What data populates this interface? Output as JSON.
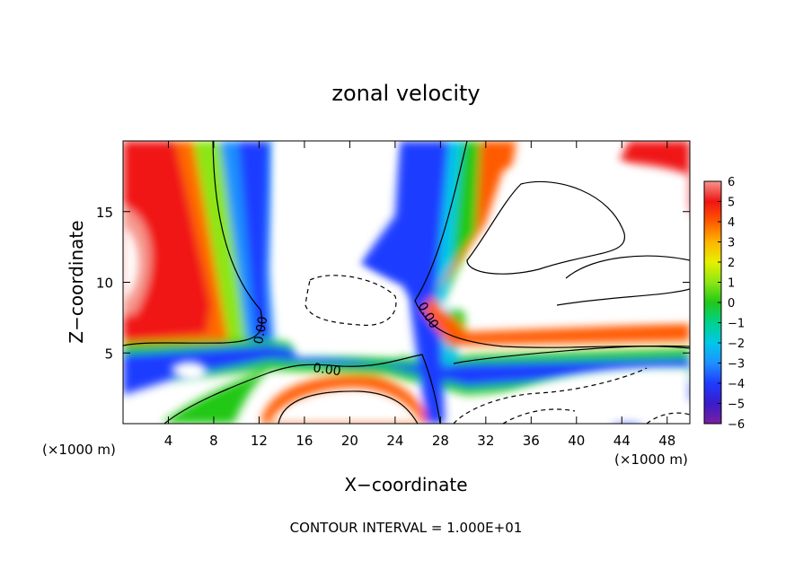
{
  "chart_data": {
    "type": "heatmap",
    "title": "zonal velocity",
    "xlabel": "X−coordinate",
    "ylabel": "Z−coordinate",
    "x_units": "(×1000 m)",
    "xlim": [
      0,
      50
    ],
    "ylim": [
      0,
      20
    ],
    "x_ticks": [
      4,
      8,
      12,
      16,
      20,
      24,
      28,
      32,
      36,
      40,
      44,
      48
    ],
    "y_ticks": [
      5,
      10,
      15
    ],
    "colorbar": {
      "range": [
        -6,
        6
      ],
      "ticks": [
        6,
        5,
        4,
        3,
        2,
        1,
        0,
        -1,
        -2,
        -3,
        -4,
        -5,
        -6
      ],
      "tick_labels": [
        "6",
        "5",
        "4",
        "3",
        "2",
        "1",
        "0",
        "−1",
        "−2",
        "−3",
        "−4",
        "−5",
        "−6"
      ],
      "color_stops": [
        {
          "value": -6,
          "color": "#7b1fa2"
        },
        {
          "value": -5,
          "color": "#3a1cc8"
        },
        {
          "value": -4,
          "color": "#1e3cff"
        },
        {
          "value": -3,
          "color": "#1e90ff"
        },
        {
          "value": -2,
          "color": "#00c8e8"
        },
        {
          "value": -1,
          "color": "#00d28c"
        },
        {
          "value": 0,
          "color": "#22c818"
        },
        {
          "value": 1,
          "color": "#8ce614"
        },
        {
          "value": 2,
          "color": "#e6f000"
        },
        {
          "value": 3,
          "color": "#ffb400"
        },
        {
          "value": 4,
          "color": "#ff5a00"
        },
        {
          "value": 5,
          "color": "#f01414"
        },
        {
          "value": 6,
          "color": "#f5968c"
        }
      ]
    },
    "contour_labels": [
      "0.00",
      "0.00",
      "0.00"
    ],
    "footer": "CONTOUR INTERVAL = 1.000E+01",
    "regions": [
      {
        "name": "jet-left",
        "x": [
          0,
          50
        ],
        "values": [
          5.5,
          5
        ]
      },
      {
        "name": "column-left",
        "x": [
          11.5
        ],
        "z": [
          0,
          20
        ],
        "value": -4
      },
      {
        "name": "column-right",
        "x": [
          27.5
        ],
        "z": [
          0,
          20
        ],
        "value": -5
      },
      {
        "name": "low-layer",
        "z": [
          4.5
        ],
        "value": -3
      }
    ]
  }
}
